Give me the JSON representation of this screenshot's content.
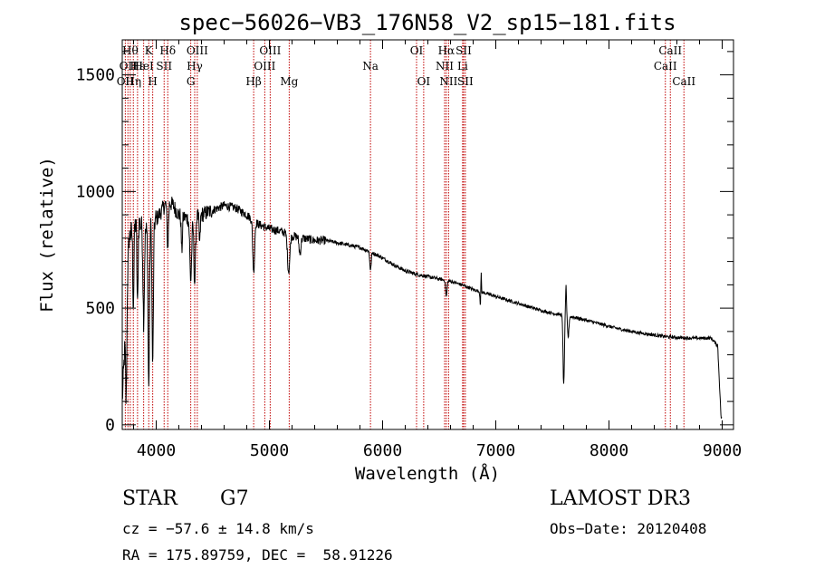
{
  "chart_data": {
    "type": "line",
    "title": "spec−56026−VB3_176N58_V2_sp15−181.fits",
    "xlabel": "Wavelength (Å)",
    "ylabel": "Flux (relative)",
    "xlim": [
      3700,
      9100
    ],
    "ylim": [
      -20,
      1650
    ],
    "x_ticks": [
      4000,
      5000,
      6000,
      7000,
      8000,
      9000
    ],
    "x_tick_labels": [
      "4000",
      "5000",
      "6000",
      "7000",
      "8000",
      "9000"
    ],
    "y_ticks": [
      0,
      500,
      1000,
      1500
    ],
    "y_tick_labels": [
      "0",
      "500",
      "1000",
      "1500"
    ],
    "spectrum_anchors": {
      "x": [
        3700,
        3730,
        3760,
        3800,
        3850,
        3900,
        3950,
        4000,
        4050,
        4100,
        4150,
        4200,
        4300,
        4400,
        4500,
        4600,
        4700,
        4800,
        4900,
        5000,
        5100,
        5200,
        5300,
        5400,
        5500,
        5600,
        5700,
        5800,
        5900,
        6000,
        6100,
        6200,
        6300,
        6400,
        6500,
        6600,
        6700,
        6800,
        6900,
        7000,
        7100,
        7200,
        7300,
        7400,
        7500,
        7600,
        7700,
        7800,
        7900,
        8000,
        8100,
        8200,
        8300,
        8400,
        8500,
        8600,
        8700,
        8800,
        8900,
        8960,
        8990
      ],
      "y": [
        100,
        420,
        800,
        850,
        870,
        820,
        860,
        880,
        920,
        960,
        940,
        900,
        880,
        900,
        920,
        940,
        930,
        900,
        860,
        840,
        830,
        810,
        800,
        790,
        790,
        780,
        770,
        760,
        740,
        715,
        685,
        660,
        645,
        635,
        625,
        615,
        600,
        580,
        565,
        550,
        535,
        520,
        505,
        490,
        478,
        470,
        460,
        448,
        435,
        422,
        410,
        400,
        392,
        385,
        378,
        374,
        372,
        371,
        372,
        340,
        30
      ]
    },
    "absorption_features": [
      {
        "x": 3735,
        "depth": 380,
        "width": 5
      },
      {
        "x": 3798,
        "depth": 330,
        "width": 5
      },
      {
        "x": 3835,
        "depth": 360,
        "width": 5
      },
      {
        "x": 3889,
        "depth": 380,
        "width": 6
      },
      {
        "x": 3934,
        "depth": 700,
        "width": 6
      },
      {
        "x": 3969,
        "depth": 620,
        "width": 6
      },
      {
        "x": 4102,
        "depth": 200,
        "width": 6
      },
      {
        "x": 4226,
        "depth": 150,
        "width": 5
      },
      {
        "x": 4305,
        "depth": 260,
        "width": 8
      },
      {
        "x": 4340,
        "depth": 280,
        "width": 7
      },
      {
        "x": 4384,
        "depth": 120,
        "width": 5
      },
      {
        "x": 4861,
        "depth": 220,
        "width": 8
      },
      {
        "x": 5170,
        "depth": 160,
        "width": 10
      },
      {
        "x": 5270,
        "depth": 70,
        "width": 8
      },
      {
        "x": 5893,
        "depth": 80,
        "width": 6
      },
      {
        "x": 6563,
        "depth": 70,
        "width": 6
      },
      {
        "x": 6867,
        "depth": 90,
        "width": 5
      },
      {
        "x": 7600,
        "depth": 300,
        "width": 6
      },
      {
        "x": 7640,
        "depth": 90,
        "width": 6
      }
    ],
    "emission_features": [
      {
        "x": 6870,
        "height": 150,
        "width": 3
      },
      {
        "x": 7620,
        "height": 130,
        "width": 4
      }
    ],
    "line_markers": [
      {
        "x": 3727,
        "label": "OII",
        "row": 3
      },
      {
        "x": 3750,
        "label": "OII",
        "row": 2
      },
      {
        "x": 3771,
        "label": "Hθ",
        "row": 1
      },
      {
        "x": 3798,
        "label": "Hη",
        "row": 3
      },
      {
        "x": 3835,
        "label": "Hε",
        "row": 2
      },
      {
        "x": 3889,
        "label": "HeI",
        "row": 2
      },
      {
        "x": 3934,
        "label": "K",
        "row": 1
      },
      {
        "x": 3969,
        "label": "H",
        "row": 3
      },
      {
        "x": 4070,
        "label": "SII",
        "row": 2
      },
      {
        "x": 4102,
        "label": "Hδ",
        "row": 1
      },
      {
        "x": 4305,
        "label": "G",
        "row": 3
      },
      {
        "x": 4340,
        "label": "Hγ",
        "row": 2
      },
      {
        "x": 4363,
        "label": "OIII",
        "row": 1
      },
      {
        "x": 4861,
        "label": "Hβ",
        "row": 3
      },
      {
        "x": 4959,
        "label": "OIII",
        "row": 2
      },
      {
        "x": 5007,
        "label": "OIII",
        "row": 1
      },
      {
        "x": 5175,
        "label": "Mg",
        "row": 3
      },
      {
        "x": 5893,
        "label": "Na",
        "row": 2
      },
      {
        "x": 6300,
        "label": "OI",
        "row": 1
      },
      {
        "x": 6363,
        "label": "OI",
        "row": 3
      },
      {
        "x": 6548,
        "label": "NII",
        "row": 2
      },
      {
        "x": 6563,
        "label": "Hα",
        "row": 1
      },
      {
        "x": 6583,
        "label": "NII",
        "row": 3
      },
      {
        "x": 6707,
        "label": "Li",
        "row": 2
      },
      {
        "x": 6716,
        "label": "SII",
        "row": 1
      },
      {
        "x": 6731,
        "label": "SII",
        "row": 3
      },
      {
        "x": 8498,
        "label": "CaII",
        "row": 2
      },
      {
        "x": 8542,
        "label": "CaII",
        "row": 1
      },
      {
        "x": 8662,
        "label": "CaII",
        "row": 3
      }
    ]
  },
  "info": {
    "object_class": "STAR",
    "subclass": "G7",
    "survey": "LAMOST DR3",
    "redshift": "cz = −57.6 ± 14.8 km/s",
    "obs_date": "Obs−Date: 20120408",
    "coords": "RA = 175.89759, DEC =  58.91226"
  },
  "colors": {
    "marker": "#c00000",
    "spectrum": "#000000",
    "axes": "#000000"
  }
}
